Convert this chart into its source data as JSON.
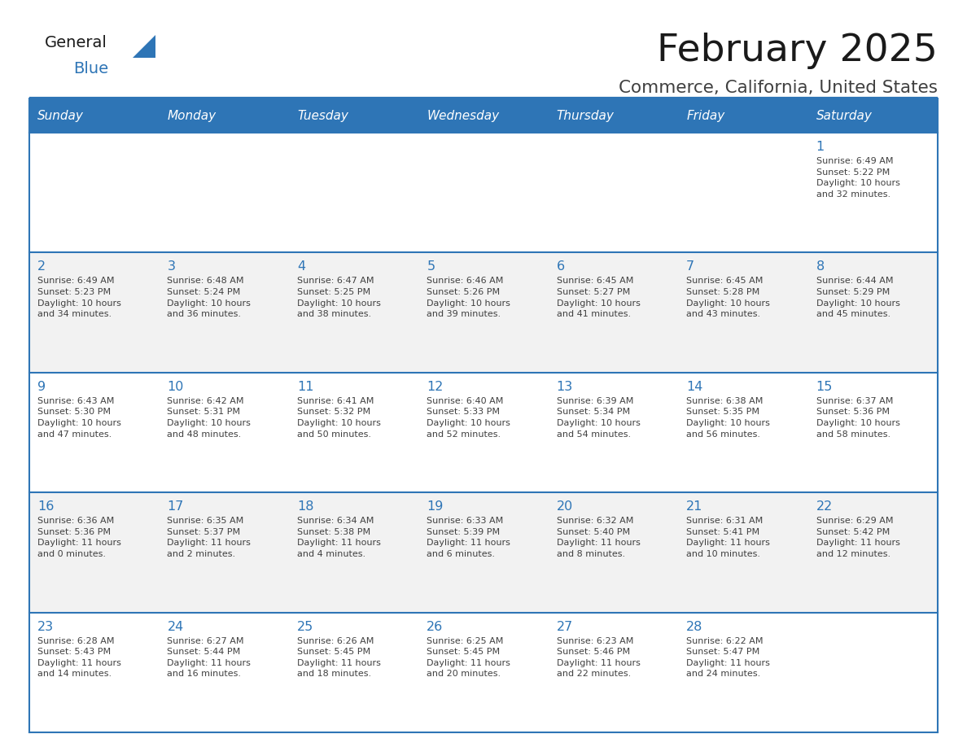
{
  "title": "February 2025",
  "subtitle": "Commerce, California, United States",
  "header_color": "#2e75b6",
  "header_text_color": "#ffffff",
  "day_names": [
    "Sunday",
    "Monday",
    "Tuesday",
    "Wednesday",
    "Thursday",
    "Friday",
    "Saturday"
  ],
  "background_color": "#ffffff",
  "cell_bg_even": "#ffffff",
  "cell_bg_odd": "#f2f2f2",
  "line_color": "#2e75b6",
  "day_num_color": "#2e75b6",
  "text_color": "#404040",
  "title_color": "#1a1a1a",
  "subtitle_color": "#404040",
  "calendar": [
    [
      "",
      "",
      "",
      "",
      "",
      "",
      "1\nSunrise: 6:49 AM\nSunset: 5:22 PM\nDaylight: 10 hours\nand 32 minutes."
    ],
    [
      "2\nSunrise: 6:49 AM\nSunset: 5:23 PM\nDaylight: 10 hours\nand 34 minutes.",
      "3\nSunrise: 6:48 AM\nSunset: 5:24 PM\nDaylight: 10 hours\nand 36 minutes.",
      "4\nSunrise: 6:47 AM\nSunset: 5:25 PM\nDaylight: 10 hours\nand 38 minutes.",
      "5\nSunrise: 6:46 AM\nSunset: 5:26 PM\nDaylight: 10 hours\nand 39 minutes.",
      "6\nSunrise: 6:45 AM\nSunset: 5:27 PM\nDaylight: 10 hours\nand 41 minutes.",
      "7\nSunrise: 6:45 AM\nSunset: 5:28 PM\nDaylight: 10 hours\nand 43 minutes.",
      "8\nSunrise: 6:44 AM\nSunset: 5:29 PM\nDaylight: 10 hours\nand 45 minutes."
    ],
    [
      "9\nSunrise: 6:43 AM\nSunset: 5:30 PM\nDaylight: 10 hours\nand 47 minutes.",
      "10\nSunrise: 6:42 AM\nSunset: 5:31 PM\nDaylight: 10 hours\nand 48 minutes.",
      "11\nSunrise: 6:41 AM\nSunset: 5:32 PM\nDaylight: 10 hours\nand 50 minutes.",
      "12\nSunrise: 6:40 AM\nSunset: 5:33 PM\nDaylight: 10 hours\nand 52 minutes.",
      "13\nSunrise: 6:39 AM\nSunset: 5:34 PM\nDaylight: 10 hours\nand 54 minutes.",
      "14\nSunrise: 6:38 AM\nSunset: 5:35 PM\nDaylight: 10 hours\nand 56 minutes.",
      "15\nSunrise: 6:37 AM\nSunset: 5:36 PM\nDaylight: 10 hours\nand 58 minutes."
    ],
    [
      "16\nSunrise: 6:36 AM\nSunset: 5:36 PM\nDaylight: 11 hours\nand 0 minutes.",
      "17\nSunrise: 6:35 AM\nSunset: 5:37 PM\nDaylight: 11 hours\nand 2 minutes.",
      "18\nSunrise: 6:34 AM\nSunset: 5:38 PM\nDaylight: 11 hours\nand 4 minutes.",
      "19\nSunrise: 6:33 AM\nSunset: 5:39 PM\nDaylight: 11 hours\nand 6 minutes.",
      "20\nSunrise: 6:32 AM\nSunset: 5:40 PM\nDaylight: 11 hours\nand 8 minutes.",
      "21\nSunrise: 6:31 AM\nSunset: 5:41 PM\nDaylight: 11 hours\nand 10 minutes.",
      "22\nSunrise: 6:29 AM\nSunset: 5:42 PM\nDaylight: 11 hours\nand 12 minutes."
    ],
    [
      "23\nSunrise: 6:28 AM\nSunset: 5:43 PM\nDaylight: 11 hours\nand 14 minutes.",
      "24\nSunrise: 6:27 AM\nSunset: 5:44 PM\nDaylight: 11 hours\nand 16 minutes.",
      "25\nSunrise: 6:26 AM\nSunset: 5:45 PM\nDaylight: 11 hours\nand 18 minutes.",
      "26\nSunrise: 6:25 AM\nSunset: 5:45 PM\nDaylight: 11 hours\nand 20 minutes.",
      "27\nSunrise: 6:23 AM\nSunset: 5:46 PM\nDaylight: 11 hours\nand 22 minutes.",
      "28\nSunrise: 6:22 AM\nSunset: 5:47 PM\nDaylight: 11 hours\nand 24 minutes.",
      ""
    ]
  ],
  "logo_general_color": "#1a1a1a",
  "logo_blue_color": "#2e75b6",
  "logo_triangle_color": "#2e75b6"
}
